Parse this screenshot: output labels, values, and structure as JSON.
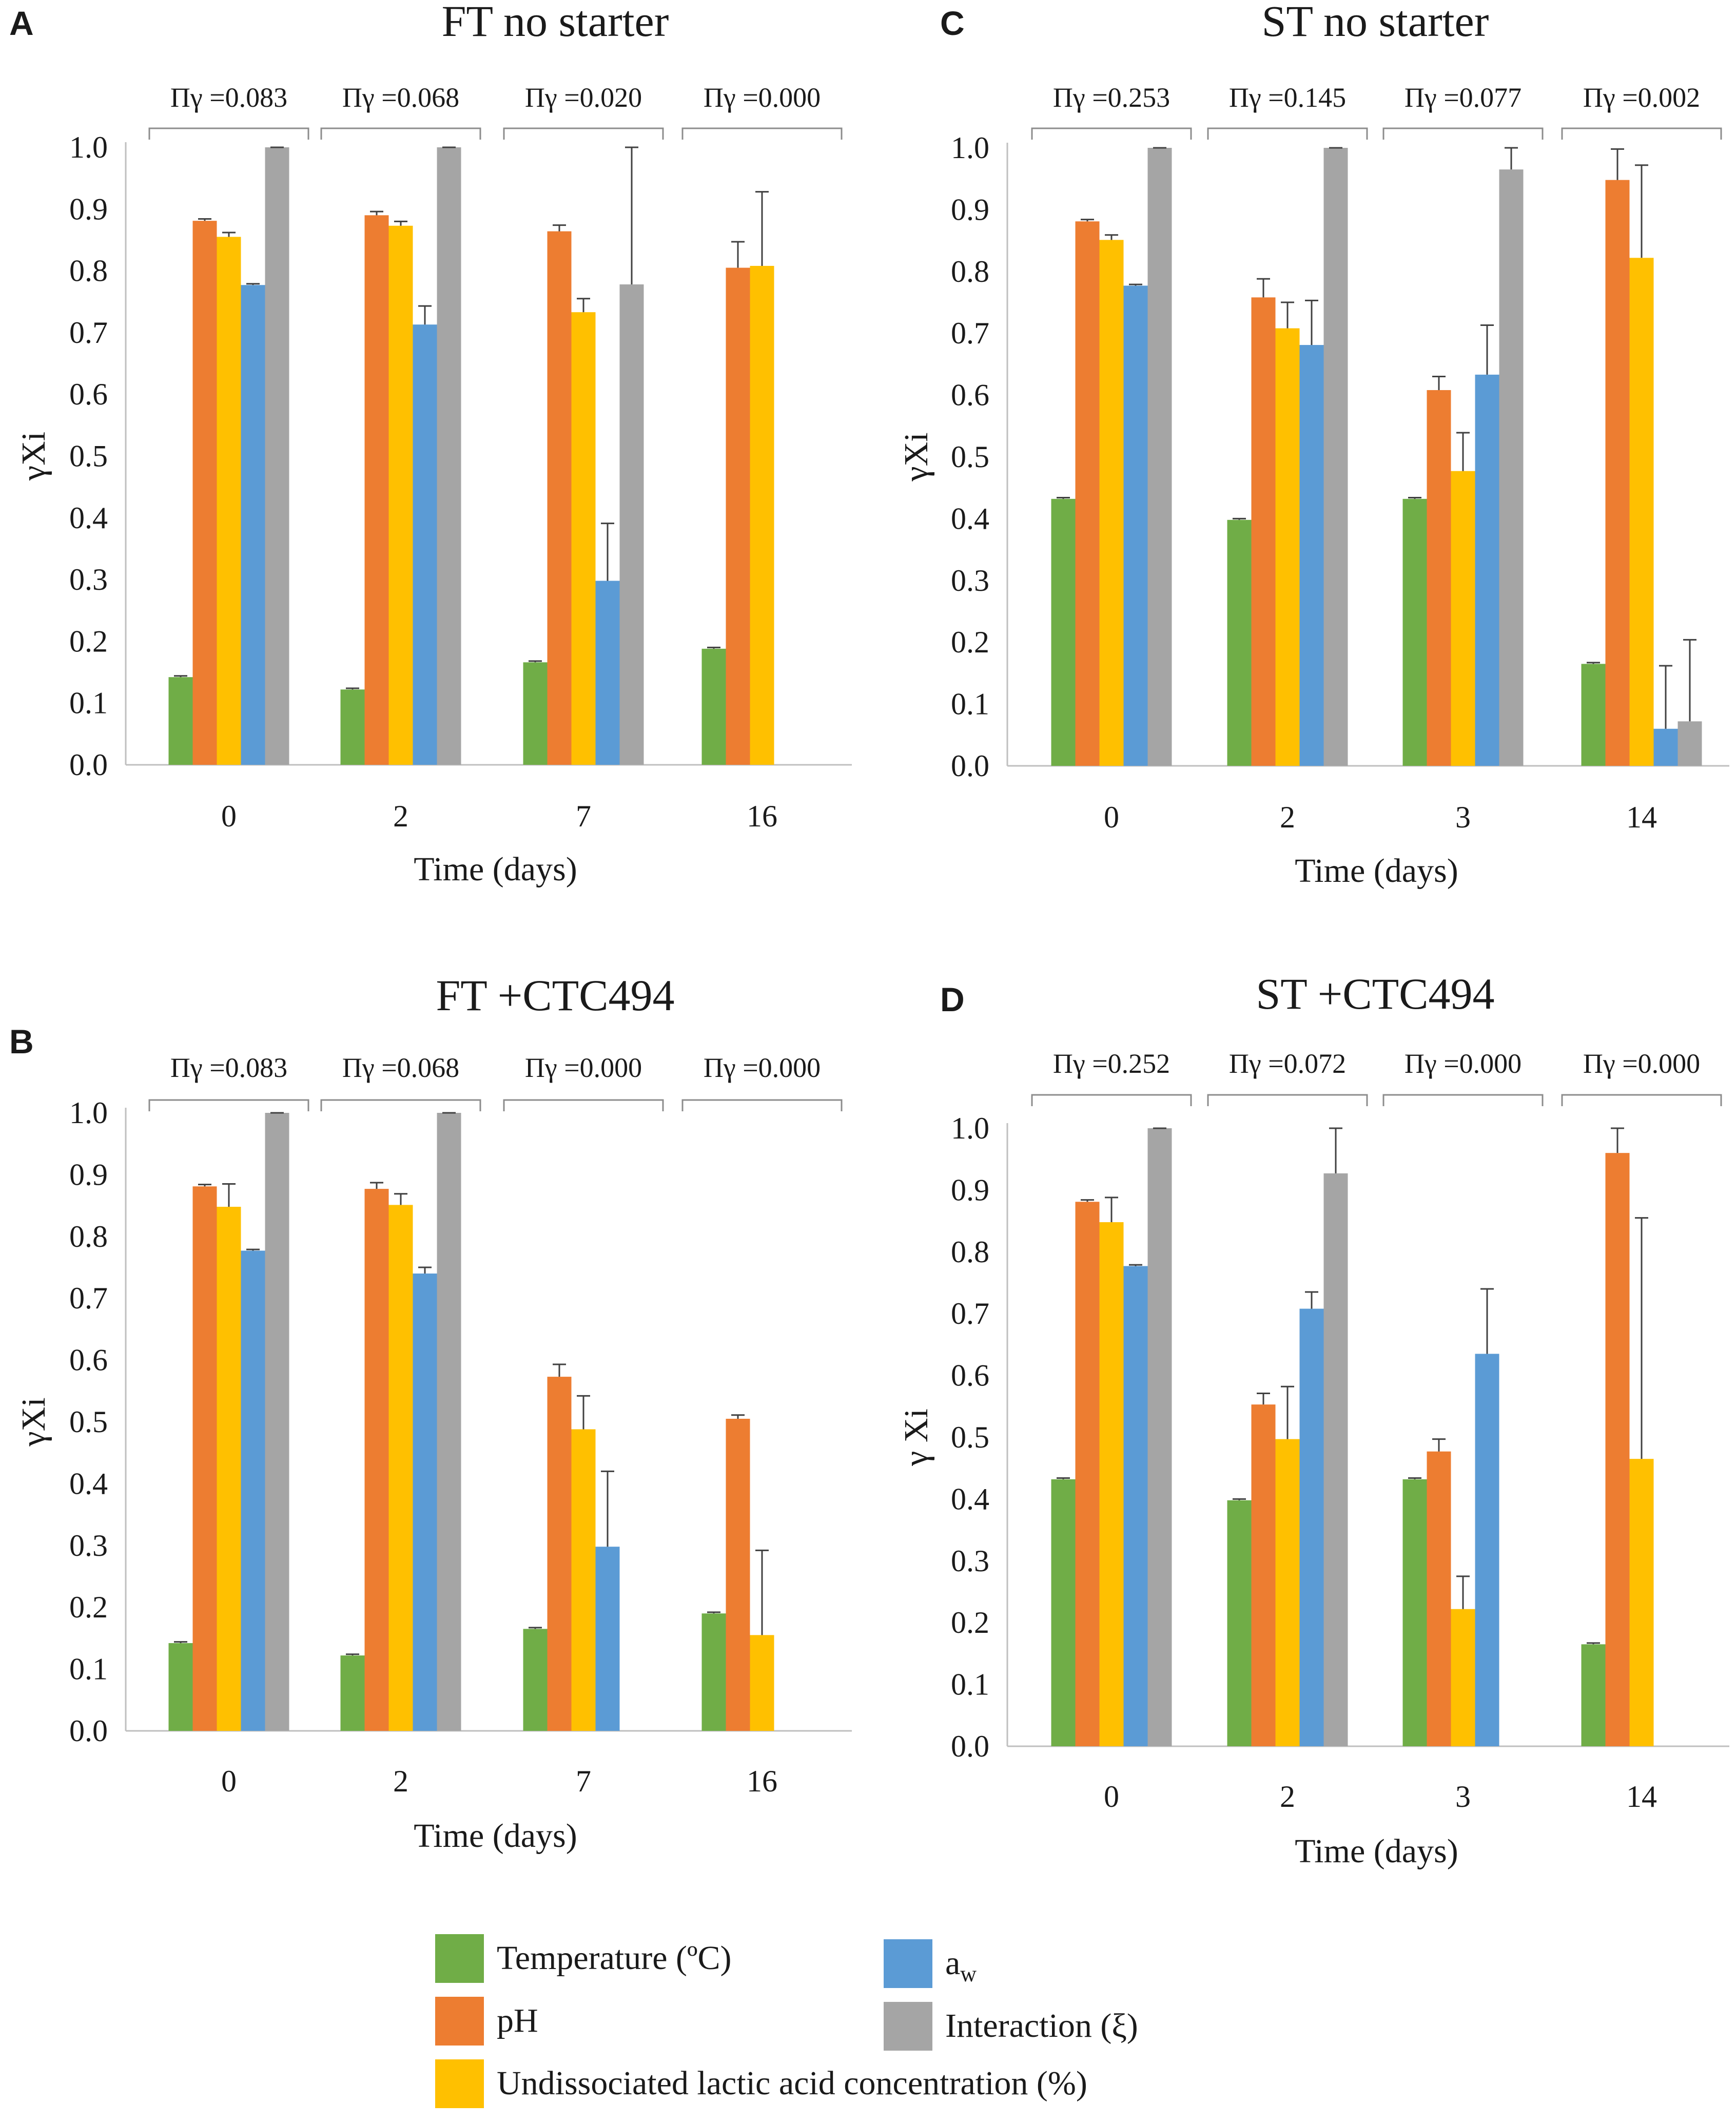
{
  "legend": {
    "items": [
      {
        "key": "temperature",
        "label": "Temperature (ºC)",
        "color": "#70AD47"
      },
      {
        "key": "ph",
        "label": "pH",
        "color": "#ED7D31"
      },
      {
        "key": "lactic",
        "label": "Undissociated lactic acid concentration (%)",
        "color": "#FFC000"
      },
      {
        "key": "aw",
        "label": "a",
        "subscript": "w",
        "color": "#5B9BD5"
      },
      {
        "key": "interaction",
        "label": "Interaction (ξ)",
        "color": "#A5A5A5"
      }
    ]
  },
  "chart_data": [
    {
      "panel": "A",
      "type": "bar",
      "title": "FT no starter",
      "xlabel": "Time (days)",
      "ylabel": "γXi",
      "ylim": [
        0,
        1.0
      ],
      "yticks": [
        "0.0",
        "0.1",
        "0.2",
        "0.3",
        "0.4",
        "0.5",
        "0.6",
        "0.7",
        "0.8",
        "0.9",
        "1.0"
      ],
      "categories": [
        "0",
        "2",
        "7",
        "16"
      ],
      "pi_labels": [
        "Πγ =0.083",
        "Πγ =0.068",
        "Πγ =0.020",
        "Πγ =0.000"
      ],
      "series": [
        {
          "name": "Temperature (ºC)",
          "values": [
            0.142,
            0.122,
            0.166,
            0.188
          ],
          "errors": [
            0.002,
            0.002,
            0.002,
            0.002
          ]
        },
        {
          "name": "pH",
          "values": [
            0.881,
            0.89,
            0.864,
            0.805
          ],
          "errors": [
            0.003,
            0.006,
            0.01,
            0.042
          ]
        },
        {
          "name": "Undissociated lactic acid concentration (%)",
          "values": [
            0.855,
            0.873,
            0.733,
            0.808
          ],
          "errors": [
            0.007,
            0.007,
            0.022,
            0.12
          ]
        },
        {
          "name": "aw",
          "values": [
            0.777,
            0.713,
            0.298,
            null
          ],
          "errors": [
            0.002,
            0.03,
            0.093,
            null
          ]
        },
        {
          "name": "Interaction (ξ)",
          "values": [
            1.0,
            1.0,
            0.778,
            null
          ],
          "errors": [
            0.0,
            0.0,
            0.222,
            null
          ]
        }
      ]
    },
    {
      "panel": "B",
      "type": "bar",
      "title": "FT +CTC494",
      "xlabel": "Time (days)",
      "ylabel": "γXi",
      "ylim": [
        0,
        1.0
      ],
      "yticks": [
        "0.0",
        "0.1",
        "0.2",
        "0.3",
        "0.4",
        "0.5",
        "0.6",
        "0.7",
        "0.8",
        "0.9",
        "1.0"
      ],
      "categories": [
        "0",
        "2",
        "7",
        "16"
      ],
      "pi_labels": [
        "Πγ =0.083",
        "Πγ =0.068",
        "Πγ =0.000",
        "Πγ =0.000"
      ],
      "series": [
        {
          "name": "Temperature (ºC)",
          "values": [
            0.142,
            0.122,
            0.165,
            0.19
          ],
          "errors": [
            0.002,
            0.002,
            0.002,
            0.002
          ]
        },
        {
          "name": "pH",
          "values": [
            0.881,
            0.877,
            0.573,
            0.505
          ],
          "errors": [
            0.003,
            0.01,
            0.02,
            0.006
          ]
        },
        {
          "name": "Undissociated lactic acid concentration (%)",
          "values": [
            0.848,
            0.851,
            0.488,
            0.155
          ],
          "errors": [
            0.037,
            0.018,
            0.054,
            0.137
          ]
        },
        {
          "name": "aw",
          "values": [
            0.777,
            0.74,
            0.298,
            null
          ],
          "errors": [
            0.002,
            0.01,
            0.122,
            null
          ]
        },
        {
          "name": "Interaction (ξ)",
          "values": [
            1.0,
            1.0,
            null,
            null
          ],
          "errors": [
            0.0,
            0.0,
            null,
            null
          ]
        }
      ]
    },
    {
      "panel": "C",
      "type": "bar",
      "title": "ST no starter",
      "xlabel": "Time (days)",
      "ylabel": "γXi",
      "ylim": [
        0,
        1.0
      ],
      "yticks": [
        "0.0",
        "0.1",
        "0.2",
        "0.3",
        "0.4",
        "0.5",
        "0.6",
        "0.7",
        "0.8",
        "0.9",
        "1.0"
      ],
      "categories": [
        "0",
        "2",
        "3",
        "14"
      ],
      "pi_labels": [
        "Πγ =0.253",
        "Πγ =0.145",
        "Πγ =0.077",
        "Πγ =0.002"
      ],
      "series": [
        {
          "name": "Temperature (ºC)",
          "values": [
            0.432,
            0.398,
            0.432,
            0.165
          ],
          "errors": [
            0.002,
            0.002,
            0.002,
            0.002
          ]
        },
        {
          "name": "pH",
          "values": [
            0.881,
            0.758,
            0.608,
            0.948
          ],
          "errors": [
            0.003,
            0.03,
            0.022,
            0.05
          ]
        },
        {
          "name": "Undissociated lactic acid concentration (%)",
          "values": [
            0.851,
            0.708,
            0.477,
            0.822
          ],
          "errors": [
            0.008,
            0.042,
            0.062,
            0.15
          ]
        },
        {
          "name": "aw",
          "values": [
            0.777,
            0.681,
            0.633,
            0.06
          ],
          "errors": [
            0.002,
            0.072,
            0.08,
            0.102
          ]
        },
        {
          "name": "Interaction (ξ)",
          "values": [
            1.0,
            1.0,
            0.965,
            0.072
          ],
          "errors": [
            0.0,
            0.0,
            0.035,
            0.132
          ]
        }
      ]
    },
    {
      "panel": "D",
      "type": "bar",
      "title": "ST +CTC494",
      "xlabel": "Time (days)",
      "ylabel": "γ Xi",
      "ylim": [
        0,
        1.0
      ],
      "yticks": [
        "0.0",
        "0.1",
        "0.2",
        "0.3",
        "0.4",
        "0.5",
        "0.6",
        "0.7",
        "0.8",
        "0.9",
        "1.0"
      ],
      "categories": [
        "0",
        "2",
        "3",
        "14"
      ],
      "pi_labels": [
        "Πγ =0.252",
        "Πγ =0.072",
        "Πγ =0.000",
        "Πγ =0.000"
      ],
      "series": [
        {
          "name": "Temperature (ºC)",
          "values": [
            0.432,
            0.398,
            0.432,
            0.165
          ],
          "errors": [
            0.002,
            0.002,
            0.002,
            0.002
          ]
        },
        {
          "name": "pH",
          "values": [
            0.881,
            0.553,
            0.477,
            0.96
          ],
          "errors": [
            0.003,
            0.018,
            0.02,
            0.04
          ]
        },
        {
          "name": "Undissociated lactic acid concentration (%)",
          "values": [
            0.848,
            0.497,
            0.222,
            0.465
          ],
          "errors": [
            0.04,
            0.085,
            0.053,
            0.39
          ]
        },
        {
          "name": "aw",
          "values": [
            0.777,
            0.708,
            0.635,
            null
          ],
          "errors": [
            0.002,
            0.027,
            0.105,
            null
          ]
        },
        {
          "name": "Interaction (ξ)",
          "values": [
            1.0,
            0.927,
            null,
            null
          ],
          "errors": [
            0.0,
            0.073,
            null,
            null
          ]
        }
      ]
    }
  ]
}
